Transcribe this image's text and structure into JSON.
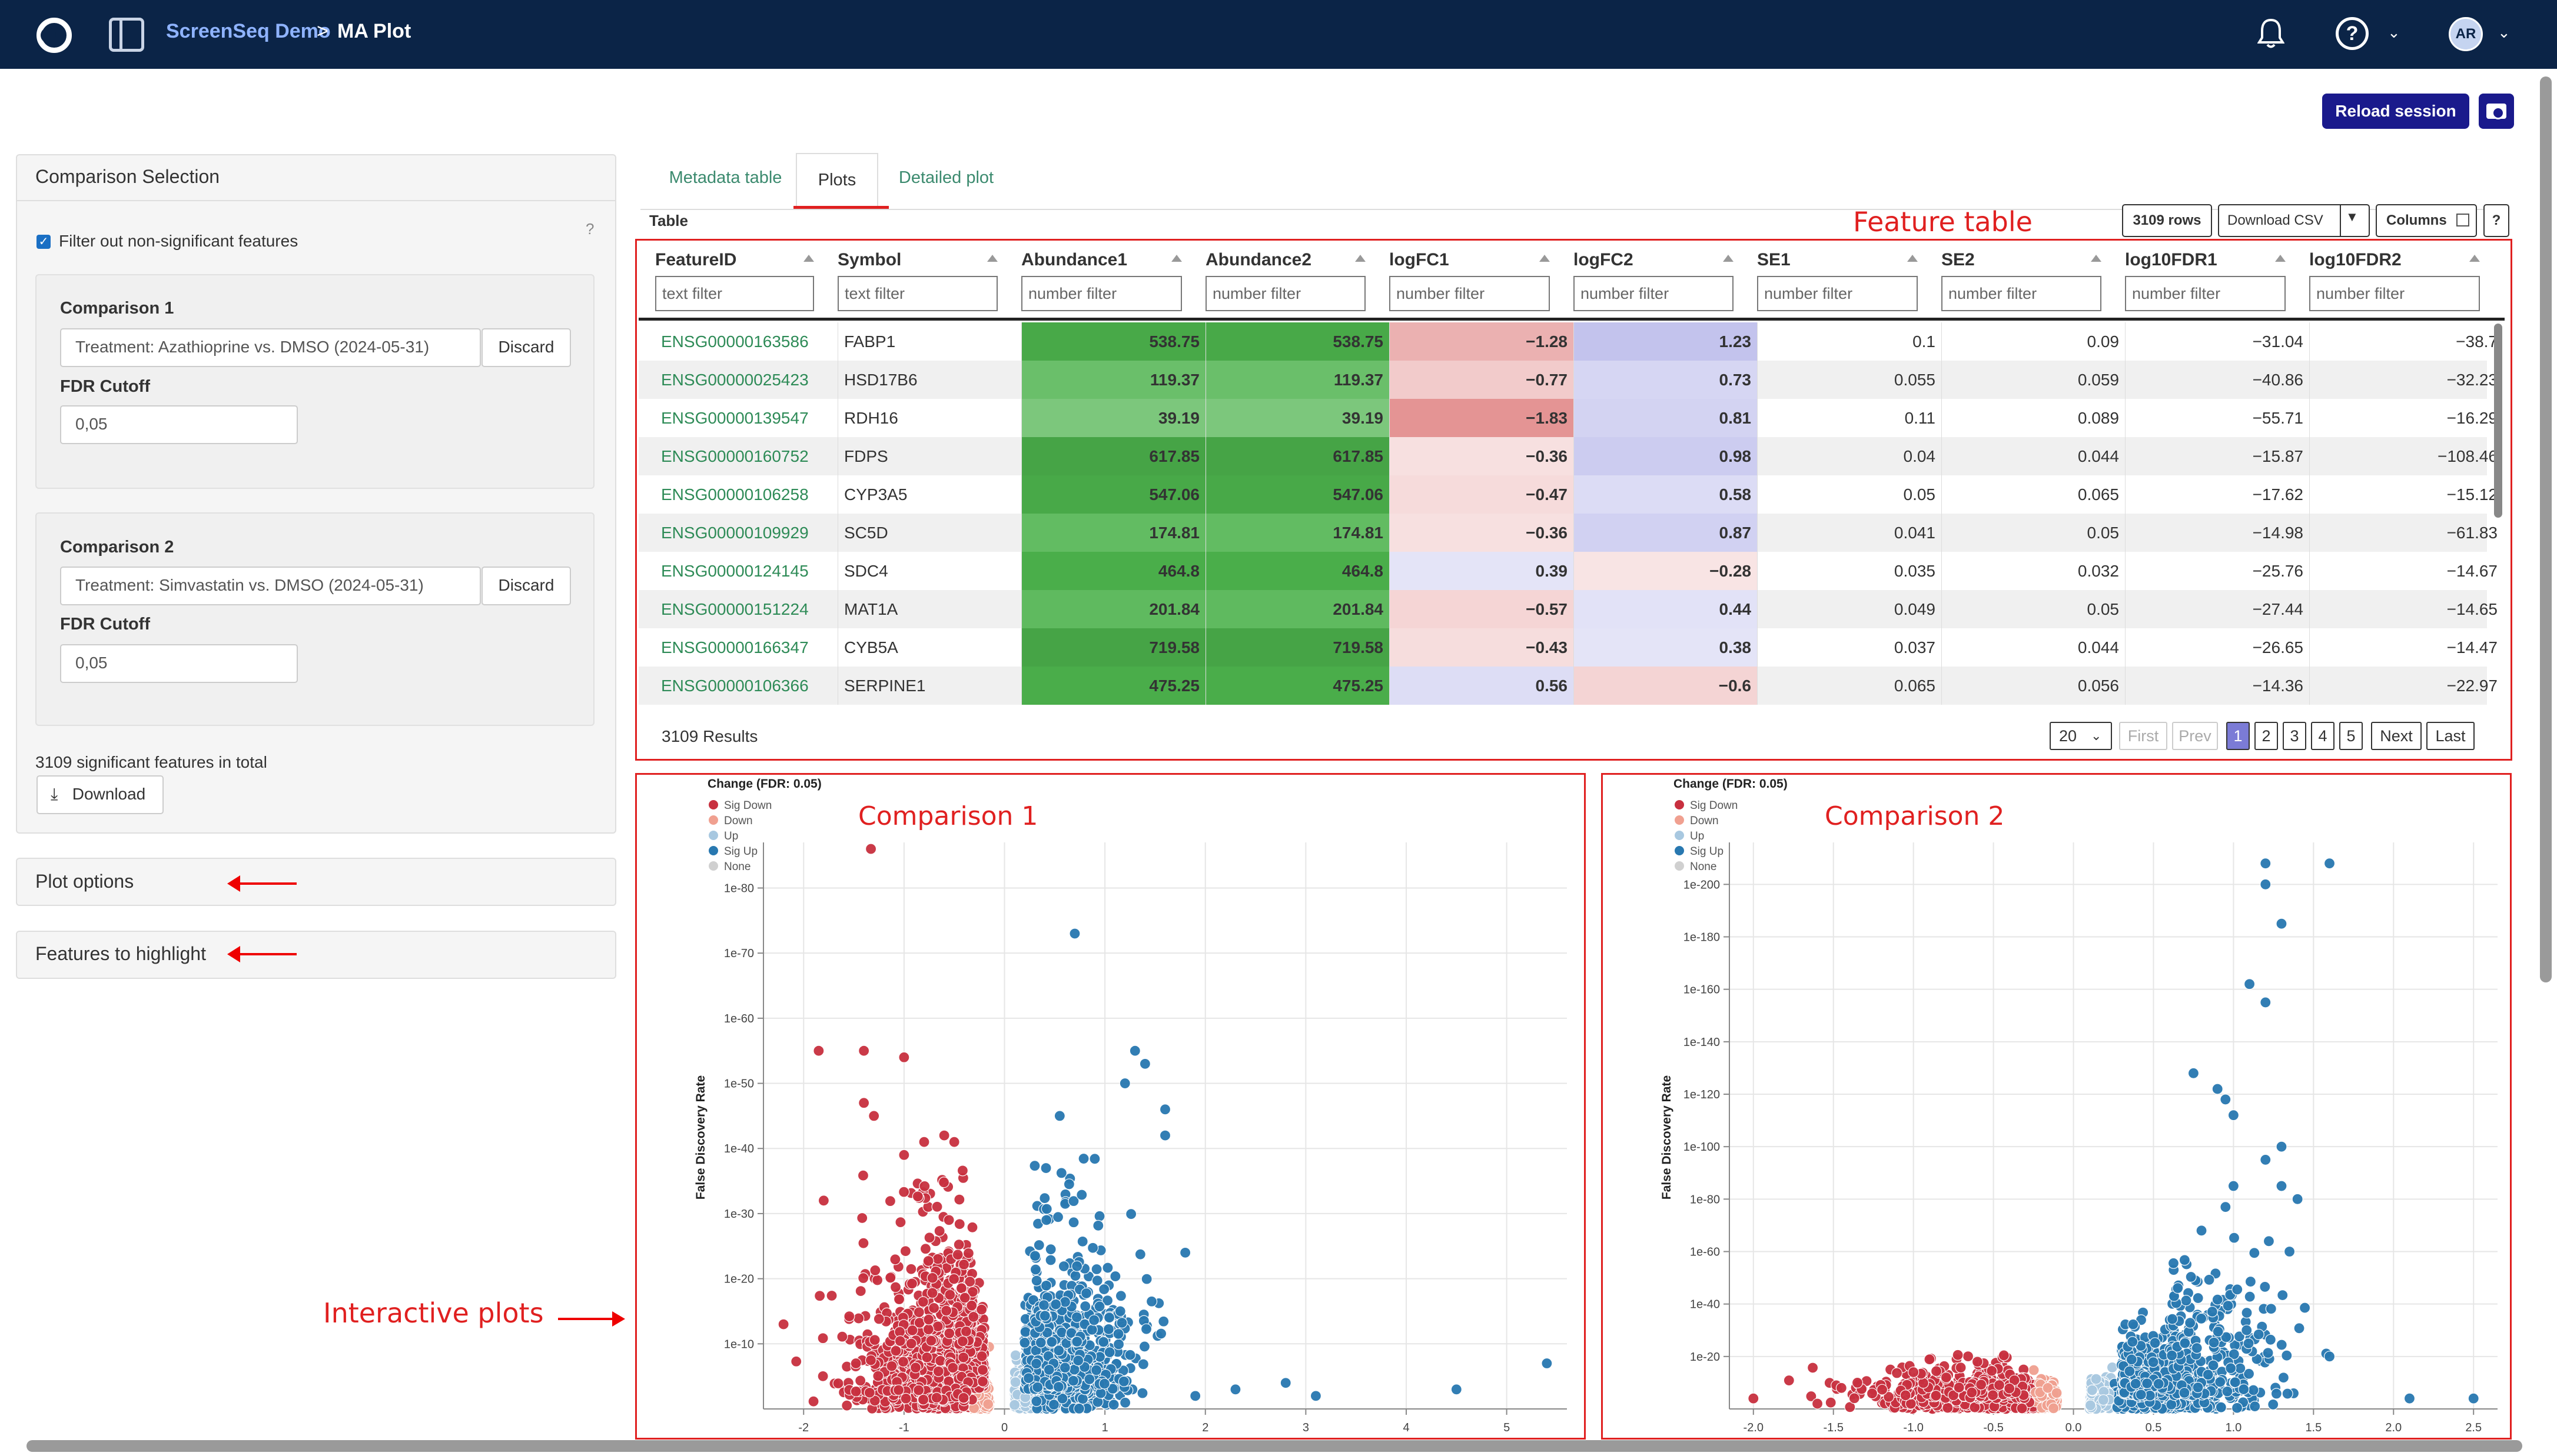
{
  "header": {
    "app": "ScreenSeq Demo",
    "sep": ">",
    "page": "MA Plot",
    "avatar": "AR"
  },
  "actions": {
    "reload": "Reload session"
  },
  "left": {
    "title": "Comparison Selection",
    "filter_label": "Filter out non-significant features",
    "help": "?",
    "comparisons": [
      {
        "title": "Comparison 1",
        "value": "Treatment: Azathioprine vs. DMSO (2024-05-31)",
        "discard": "Discard",
        "fdr_label": "FDR Cutoff",
        "fdr": "0,05"
      },
      {
        "title": "Comparison 2",
        "value": "Treatment: Simvastatin vs. DMSO (2024-05-31)",
        "discard": "Discard",
        "fdr_label": "FDR Cutoff",
        "fdr": "0,05"
      }
    ],
    "sig_text": "3109 significant features in total",
    "download": "Download",
    "plot_options": "Plot options",
    "features_highlight": "Features to highlight"
  },
  "tabs": {
    "t1": "Metadata table",
    "t2": "Plots",
    "t3": "Detailed plot"
  },
  "table": {
    "label": "Table",
    "rows_btn": "3109 rows",
    "csv_btn": "Download CSV",
    "csv_caret": "▼",
    "columns_btn": "Columns",
    "help": "?",
    "annotation": "Feature table",
    "headers": [
      "FeatureID",
      "Symbol",
      "Abundance1",
      "Abundance2",
      "logFC1",
      "logFC2",
      "SE1",
      "SE2",
      "log10FDR1",
      "log10FDR2"
    ],
    "filters": [
      "text filter",
      "text filter",
      "number filter",
      "number filter",
      "number filter",
      "number filter",
      "number filter",
      "number filter",
      "number filter",
      "number filter"
    ],
    "rows": [
      [
        "ENSG00000163586",
        "FABP1",
        "538.75",
        "538.75",
        "−1.28",
        "1.23",
        "0.1",
        "0.09",
        "−31.04",
        "−38.7"
      ],
      [
        "ENSG00000025423",
        "HSD17B6",
        "119.37",
        "119.37",
        "−0.77",
        "0.73",
        "0.055",
        "0.059",
        "−40.86",
        "−32.23"
      ],
      [
        "ENSG00000139547",
        "RDH16",
        "39.19",
        "39.19",
        "−1.83",
        "0.81",
        "0.11",
        "0.089",
        "−55.71",
        "−16.29"
      ],
      [
        "ENSG00000160752",
        "FDPS",
        "617.85",
        "617.85",
        "−0.36",
        "0.98",
        "0.04",
        "0.044",
        "−15.87",
        "−108.46"
      ],
      [
        "ENSG00000106258",
        "CYP3A5",
        "547.06",
        "547.06",
        "−0.47",
        "0.58",
        "0.05",
        "0.065",
        "−17.62",
        "−15.12"
      ],
      [
        "ENSG00000109929",
        "SC5D",
        "174.81",
        "174.81",
        "−0.36",
        "0.87",
        "0.041",
        "0.05",
        "−14.98",
        "−61.83"
      ],
      [
        "ENSG00000124145",
        "SDC4",
        "464.8",
        "464.8",
        "0.39",
        "−0.28",
        "0.035",
        "0.032",
        "−25.76",
        "−14.67"
      ],
      [
        "ENSG00000151224",
        "MAT1A",
        "201.84",
        "201.84",
        "−0.57",
        "0.44",
        "0.049",
        "0.05",
        "−27.44",
        "−14.65"
      ],
      [
        "ENSG00000166347",
        "CYB5A",
        "719.58",
        "719.58",
        "−0.43",
        "0.38",
        "0.037",
        "0.044",
        "−26.65",
        "−14.47"
      ],
      [
        "ENSG00000106366",
        "SERPINE1",
        "475.25",
        "475.25",
        "0.56",
        "−0.6",
        "0.065",
        "0.056",
        "−14.36",
        "−22.97"
      ]
    ],
    "results": "3109 Results",
    "page_size": "20",
    "pager": [
      "First",
      "Prev",
      "1",
      "2",
      "3",
      "4",
      "5",
      "Next",
      "Last"
    ]
  },
  "plots": {
    "annotation": "Interactive plots",
    "legend_title": "Change (FDR: 0.05)",
    "legend": [
      {
        "label": "Sig Down",
        "color": "#c8303f"
      },
      {
        "label": "Down",
        "color": "#f0a090"
      },
      {
        "label": "Up",
        "color": "#a8c8e0"
      },
      {
        "label": "Sig Up",
        "color": "#2878b0"
      },
      {
        "label": "None",
        "color": "#d0d0d0"
      }
    ],
    "ylabel": "False Discovery Rate",
    "p1": {
      "title": "Comparison 1",
      "xticks": [
        "-2",
        "-1",
        "0",
        "1",
        "2",
        "3",
        "4",
        "5"
      ],
      "yticks": [
        "1e-10",
        "1e-20",
        "1e-30",
        "1e-40",
        "1e-50",
        "1e-60",
        "1e-70",
        "1e-80"
      ]
    },
    "p2": {
      "title": "Comparison 2",
      "xticks": [
        "-2.0",
        "-1.5",
        "-1.0",
        "-0.5",
        "0.0",
        "0.5",
        "1.0",
        "1.5",
        "2.0",
        "2.5"
      ],
      "yticks": [
        "1e-20",
        "1e-40",
        "1e-60",
        "1e-80",
        "1e-100",
        "1e-120",
        "1e-140",
        "1e-160",
        "1e-180",
        "1e-200"
      ]
    }
  }
}
